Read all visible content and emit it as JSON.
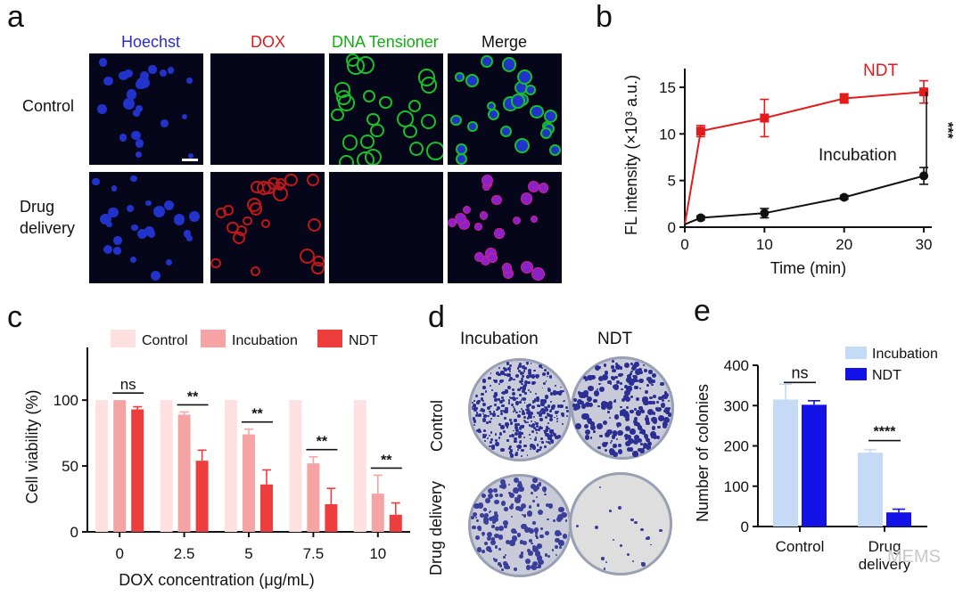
{
  "panel_a": {
    "letter": "a",
    "columns": [
      {
        "label": "Hoechst",
        "color": "#2a2ad8"
      },
      {
        "label": "DOX",
        "color": "#e01818"
      },
      {
        "label": "DNA Tensioner",
        "color": "#10b010"
      },
      {
        "label": "Merge",
        "color": "#111111"
      }
    ],
    "rows": [
      "Control",
      "Drug delivery"
    ]
  },
  "panel_b": {
    "letter": "b"
  },
  "panel_c": {
    "letter": "c"
  },
  "panel_d": {
    "letter": "d",
    "columns": [
      "Incubation",
      "NDT"
    ],
    "rows": [
      "Control",
      "Drug delivery"
    ]
  },
  "panel_e": {
    "letter": "e"
  },
  "watermark": "MEMS",
  "chart_data": [
    {
      "id": "b",
      "type": "line",
      "xlabel": "Time (min)",
      "ylabel": "FL intensity (×10³ a.u.)",
      "xlim": [
        0,
        31
      ],
      "ylim": [
        0,
        17
      ],
      "xticks": [
        0,
        10,
        20,
        30
      ],
      "yticks": [
        0,
        5,
        10,
        15
      ],
      "series": [
        {
          "name": "NDT",
          "color": "#e21c1c",
          "marker": "square",
          "x": [
            0,
            2,
            10,
            20,
            30
          ],
          "y": [
            0.3,
            10.3,
            11.7,
            13.8,
            14.5
          ],
          "err": [
            0,
            0.6,
            2.0,
            0.5,
            1.2
          ]
        },
        {
          "name": "Incubation",
          "color": "#111111",
          "marker": "circle",
          "x": [
            0,
            2,
            10,
            20,
            30
          ],
          "y": [
            0.3,
            1.0,
            1.5,
            3.2,
            5.5
          ],
          "err": [
            0,
            0.2,
            0.5,
            0.2,
            0.9
          ]
        }
      ],
      "significance": "***"
    },
    {
      "id": "c",
      "type": "bar",
      "xlabel": "DOX concentration (μg/mL)",
      "ylabel": "Cell viability (%)",
      "ylim": [
        0,
        140
      ],
      "yticks": [
        0,
        50,
        100
      ],
      "categories": [
        "0",
        "2.5",
        "5",
        "7.5",
        "10"
      ],
      "series": [
        {
          "name": "Control",
          "color": "#fde0df",
          "values": [
            100,
            100,
            100,
            100,
            100
          ],
          "err": [
            0,
            0,
            0,
            0,
            0
          ]
        },
        {
          "name": "Incubation",
          "color": "#f5a3a3",
          "values": [
            100,
            89,
            74,
            52,
            29
          ],
          "err": [
            0,
            2,
            4,
            5,
            14
          ]
        },
        {
          "name": "NDT",
          "color": "#ee3d3d",
          "values": [
            93,
            54,
            36,
            21,
            13
          ],
          "err": [
            2,
            8,
            11,
            12,
            9
          ]
        }
      ],
      "annotations": [
        "ns",
        "**",
        "**",
        "**",
        "**"
      ]
    },
    {
      "id": "e",
      "type": "bar",
      "ylabel": "Number of colonies",
      "ylim": [
        0,
        400
      ],
      "yticks": [
        0,
        100,
        200,
        300,
        400
      ],
      "categories": [
        "Control",
        "Drug delivery"
      ],
      "series": [
        {
          "name": "Incubation",
          "color": "#c5daf5",
          "values": [
            315,
            183
          ],
          "err": [
            38,
            8
          ]
        },
        {
          "name": "NDT",
          "color": "#1313e8",
          "values": [
            302,
            35
          ],
          "err": [
            10,
            8
          ]
        }
      ],
      "annotations": [
        "ns",
        "****"
      ]
    }
  ]
}
